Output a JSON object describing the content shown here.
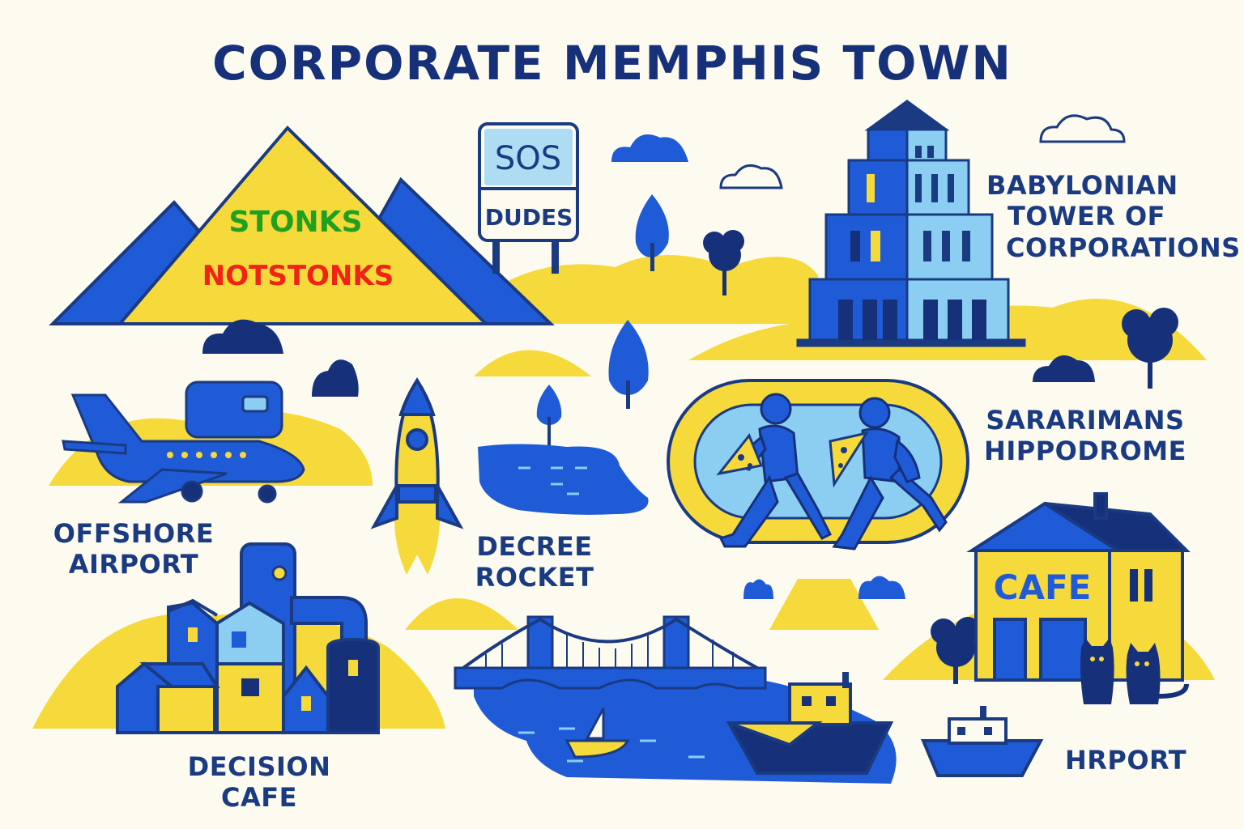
{
  "title": "CORPORATE MEMPHIS TOWN",
  "colors": {
    "background": "#fdfbef",
    "navy": "#1a3a82",
    "royal_blue": "#1f5bd6",
    "light_blue": "#8ccdf2",
    "yellow": "#f6d93a",
    "green_text": "#1fa01f",
    "red_text": "#f02416"
  },
  "mountain": {
    "line1": "STONKS",
    "line2": "NOTSTONKS"
  },
  "sign": {
    "top": "SOS",
    "bottom": "DUDES"
  },
  "places": {
    "tower": {
      "line1": "BABYLONIAN",
      "line2": "TOWER OF",
      "line3": "CORPORATIONS"
    },
    "hippodrome": {
      "line1": "SARARIMANS",
      "line2": "HIPPODROME"
    },
    "airport": {
      "line1": "OFFSHORE",
      "line2": "AIRPORT"
    },
    "rocket": {
      "line1": "DECREE",
      "line2": "ROCKET"
    },
    "decision": {
      "line1": "DECISION",
      "line2": "CAFE"
    },
    "hrport": {
      "line1": "HRPORT"
    }
  },
  "cafe_sign": "CAFE",
  "icons": [
    "pyramid-mountain-icon",
    "road-sign-icon",
    "cloud-icon",
    "tree-icon",
    "ziggurat-tower-icon",
    "airplane-icon",
    "rocket-icon",
    "pond-icon",
    "running-track-icon",
    "runner-icon",
    "pizza-slice-icon",
    "cafe-building-icon",
    "cat-icon",
    "factory-houses-icon",
    "bridge-icon",
    "ship-icon",
    "sailboat-icon"
  ]
}
